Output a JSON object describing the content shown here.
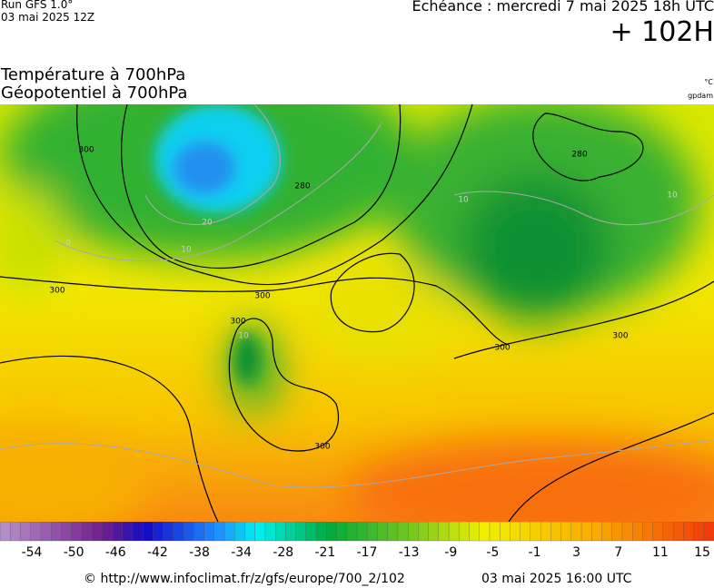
{
  "header": {
    "run": "Run GFS 1.0°",
    "date": "03 mai 2025 12Z",
    "echeance": "Echéance : mercredi 7 mai 2025 18h UTC",
    "lead": "+ 102H"
  },
  "titles": [
    "Température à 700hPa",
    "Géopotentiel à 700hPa"
  ],
  "units": [
    "°C",
    "gpdam"
  ],
  "map": {
    "contour_labels": [
      "300",
      "280",
      "300",
      "300",
      "300",
      "300",
      "300",
      "300",
      "280"
    ],
    "isotherm_labels": [
      "20",
      "10",
      "0",
      "10",
      "10",
      "10"
    ]
  },
  "legend": {
    "ticks": [
      -54,
      -50,
      -46,
      -42,
      -38,
      -34,
      -28,
      -21,
      -17,
      -13,
      -9,
      -5,
      -1,
      3,
      7,
      11,
      15
    ]
  },
  "footer": {
    "source": "© http://www.infoclimat.fr/z/gfs/europe/700_2/102",
    "issued": "03 mai 2025 16:00 UTC"
  }
}
